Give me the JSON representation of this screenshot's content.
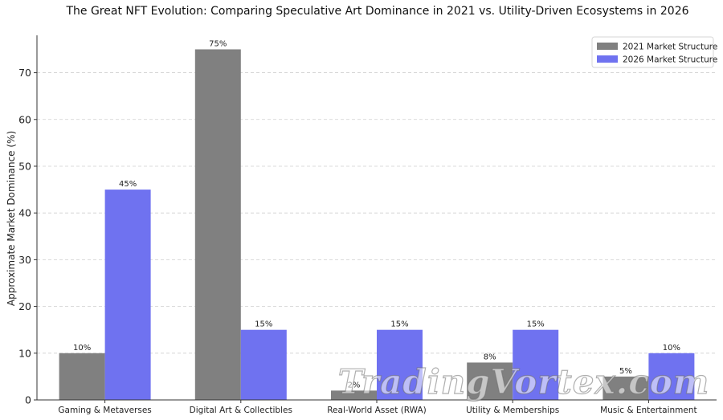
{
  "chart_data": {
    "type": "bar",
    "title": "The Great NFT Evolution: Comparing Speculative Art Dominance in 2021 vs. Utility-Driven Ecosystems in 2026",
    "xlabel": "",
    "ylabel": "Approximate Market Dominance (%)",
    "ylim": [
      0,
      78
    ],
    "yticks": [
      0,
      10,
      20,
      30,
      40,
      50,
      60,
      70
    ],
    "grid": "horizontal-dashed",
    "legend_position": "top-right",
    "categories": [
      "Gaming & Metaverses",
      "Digital Art & Collectibles",
      "Real-World Asset (RWA)",
      "Utility & Memberships",
      "Music & Entertainment"
    ],
    "series": [
      {
        "name": "2021 Market Structure",
        "color": "#808080",
        "values": [
          10,
          75,
          2,
          8,
          5
        ],
        "labels": [
          "10%",
          "75%",
          "2%",
          "8%",
          "5%"
        ]
      },
      {
        "name": "2026 Market Structure",
        "color": "#6f72f0",
        "values": [
          45,
          15,
          15,
          15,
          10
        ],
        "labels": [
          "45%",
          "15%",
          "15%",
          "15%",
          "10%"
        ]
      }
    ]
  },
  "watermark": "TradingVortex.com"
}
